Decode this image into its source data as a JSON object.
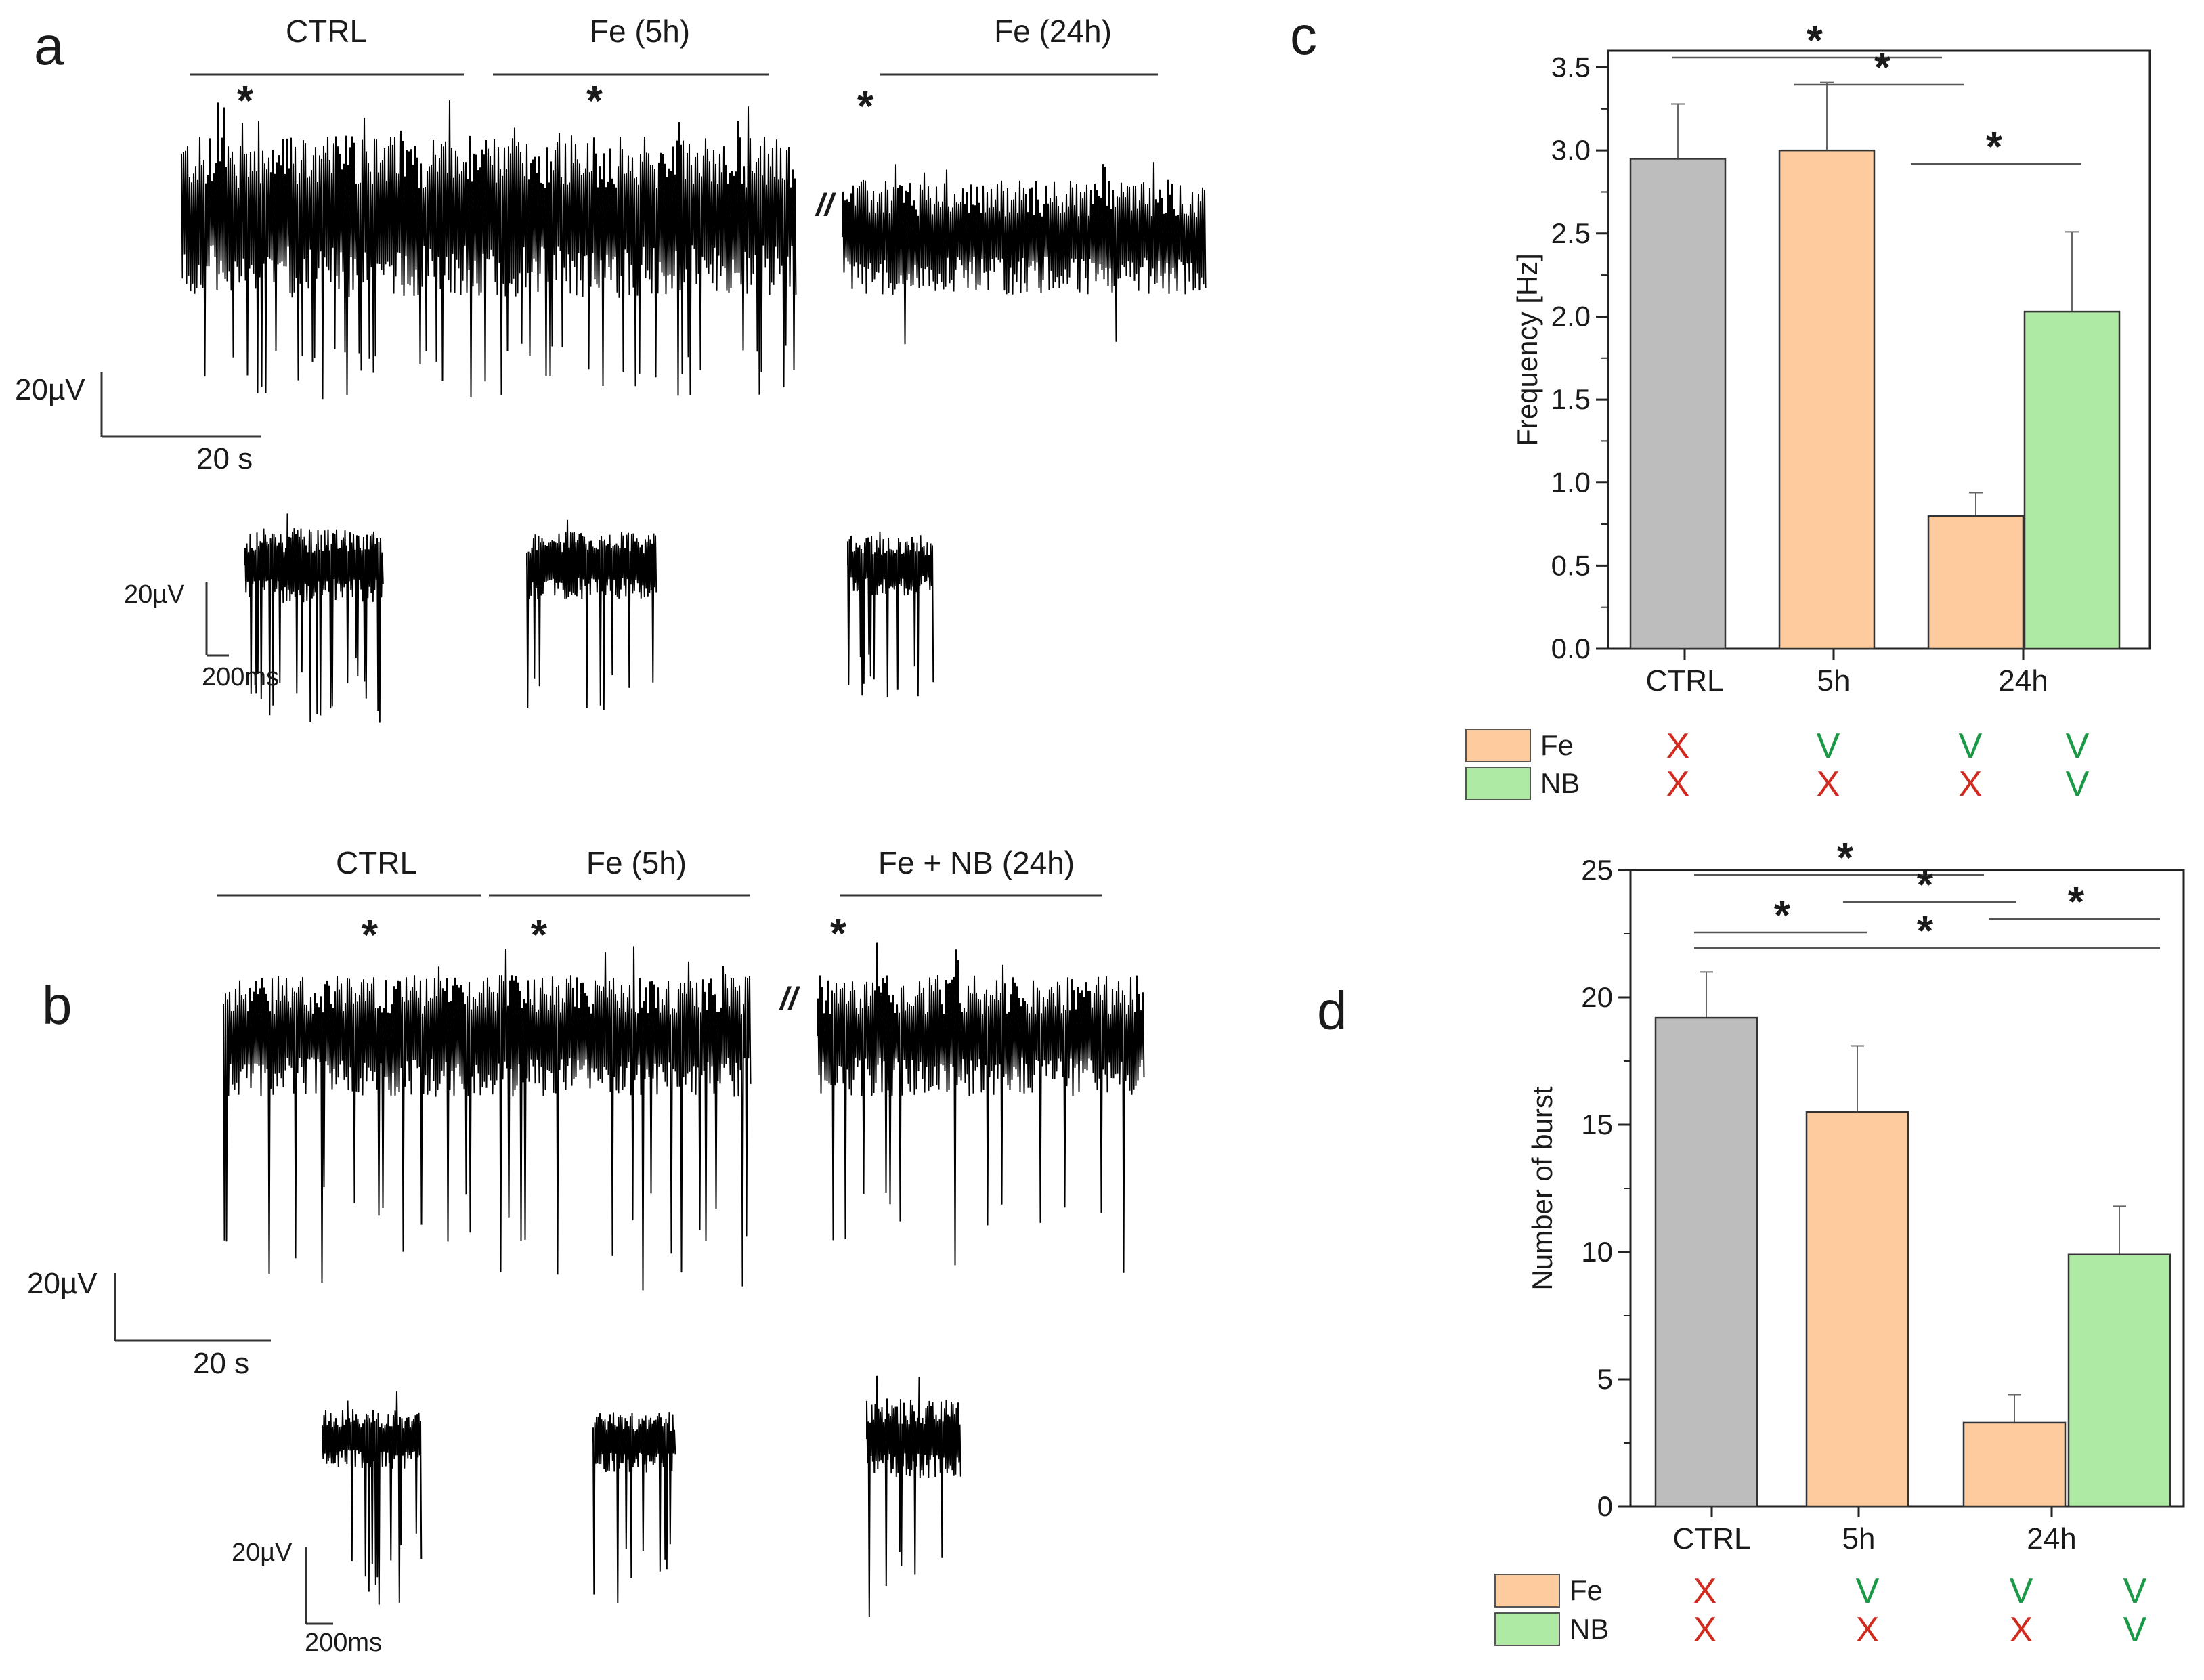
{
  "colors": {
    "ctrl": "#bdbdbd",
    "fe": "#fdcb9d",
    "nb": "#aeeaa3",
    "x_mark": "#d12b20",
    "v_mark": "#1a9a46",
    "trace": "#000000"
  },
  "panel_a": {
    "letter": "a",
    "segments": [
      "CTRL",
      "Fe (5h)",
      "Fe (24h)"
    ],
    "break_mark": "//",
    "scale_main": {
      "amplitude": "20µV",
      "time": "20 s"
    },
    "scale_inset": {
      "amplitude": "20µV",
      "time": "200ms"
    },
    "star": "*"
  },
  "panel_b": {
    "letter": "b",
    "segments": [
      "CTRL",
      "Fe (5h)",
      "Fe + NB (24h)"
    ],
    "break_mark": "//",
    "scale_main": {
      "amplitude": "20µV",
      "time": "20 s"
    },
    "scale_inset": {
      "amplitude": "20µV",
      "time": "200ms"
    },
    "star": "*"
  },
  "chart_data": [
    {
      "panel": "c",
      "type": "bar",
      "title": "",
      "xlabel": "",
      "ylabel": "Frequency [Hz]",
      "ylim": [
        0,
        3.6
      ],
      "yticks": [
        "0.0",
        "0.5",
        "1.0",
        "1.5",
        "2.0",
        "2.5",
        "3.0",
        "3.5"
      ],
      "group_labels": [
        "CTRL",
        "5h",
        "24h"
      ],
      "bars": [
        {
          "group": "CTRL",
          "value": 2.95,
          "error": 0.33,
          "color": "#bdbdbd",
          "fe": "X",
          "nb": "X"
        },
        {
          "group": "5h",
          "value": 3.0,
          "error": 0.41,
          "color": "#fdcb9d",
          "fe": "V",
          "nb": "X"
        },
        {
          "group": "24h",
          "value": 0.8,
          "error": 0.14,
          "color": "#fdcb9d",
          "fe": "V",
          "nb": "X"
        },
        {
          "group": "24h",
          "value": 2.03,
          "error": 0.48,
          "color": "#aeeaa3",
          "fe": "V",
          "nb": "V"
        }
      ],
      "significance": [
        {
          "from": 0,
          "to": 2,
          "label": "*"
        },
        {
          "from": 1,
          "to": 2,
          "label": "*"
        },
        {
          "from": 2,
          "to": 3,
          "label": "*"
        }
      ],
      "legend": [
        "Fe",
        "NB"
      ]
    },
    {
      "panel": "d",
      "type": "bar",
      "title": "",
      "xlabel": "",
      "ylabel": "Number of burst",
      "ylim": [
        0,
        25
      ],
      "yticks": [
        "0",
        "5",
        "10",
        "15",
        "20",
        "25"
      ],
      "group_labels": [
        "CTRL",
        "5h",
        "24h"
      ],
      "bars": [
        {
          "group": "CTRL",
          "value": 19.2,
          "error": 1.8,
          "color": "#bdbdbd",
          "fe": "X",
          "nb": "X"
        },
        {
          "group": "5h",
          "value": 15.5,
          "error": 2.6,
          "color": "#fdcb9d",
          "fe": "V",
          "nb": "X"
        },
        {
          "group": "24h",
          "value": 3.3,
          "error": 1.1,
          "color": "#fdcb9d",
          "fe": "V",
          "nb": "X"
        },
        {
          "group": "24h",
          "value": 9.9,
          "error": 1.9,
          "color": "#aeeaa3",
          "fe": "V",
          "nb": "V"
        }
      ],
      "significance": [
        {
          "from": 0,
          "to": 2,
          "label": "*"
        },
        {
          "from": 1,
          "to": 2,
          "label": "*"
        },
        {
          "from": 2,
          "to": 3,
          "label": "*"
        },
        {
          "from": 0,
          "to": 1,
          "label": "*"
        },
        {
          "from": 0,
          "to": 3,
          "label": "*"
        }
      ],
      "legend": [
        "Fe",
        "NB"
      ]
    }
  ]
}
